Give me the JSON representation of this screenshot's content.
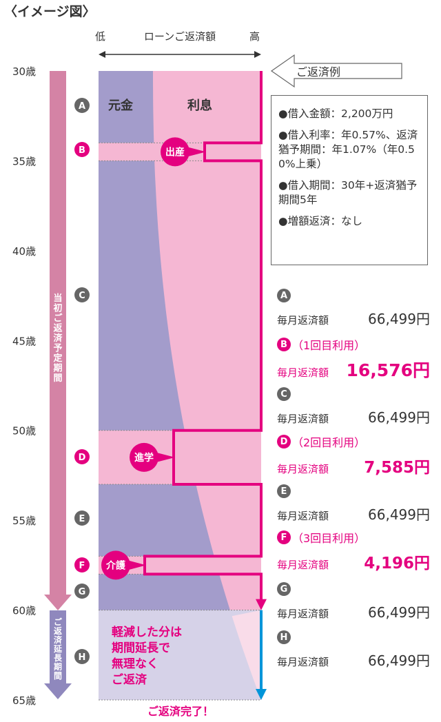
{
  "header": {
    "title": "〈イメージ図〉"
  },
  "legend": {
    "low": "低",
    "axis_label": "ローンご返済額",
    "high": "高"
  },
  "example_label": "ご返済例",
  "conditions": [
    "●借入金額：2,200万円",
    "●借入利率：年0.57%、返済猶予期間：年1.07%（年0.50%上乗）",
    "●借入期間：30年+返済猶予期間5年",
    "●増額返済：なし"
  ],
  "chart_data": {
    "type": "area",
    "x_axis": {
      "label": "ローンご返済額",
      "range_words": [
        "低",
        "高"
      ]
    },
    "y_axis": {
      "ticks": [
        "30歳",
        "35歳",
        "40歳",
        "45歳",
        "50歳",
        "55歳",
        "60歳",
        "65歳"
      ],
      "range": [
        30,
        65
      ]
    },
    "series": [
      {
        "name": "元金"
      },
      {
        "name": "利息"
      }
    ],
    "periods": [
      {
        "name": "当初ご返済予定期間",
        "from_age": 30,
        "to_age": 60
      },
      {
        "name": "ご返済延長期間",
        "from_age": 60,
        "to_age": 65
      }
    ],
    "segments": [
      {
        "id": "A",
        "from_age": 30,
        "to_age": 34
      },
      {
        "id": "B",
        "from_age": 34,
        "to_age": 35,
        "event": "出産"
      },
      {
        "id": "C",
        "from_age": 35,
        "to_age": 50
      },
      {
        "id": "D",
        "from_age": 50,
        "to_age": 53,
        "event": "進学"
      },
      {
        "id": "E",
        "from_age": 53,
        "to_age": 57
      },
      {
        "id": "F",
        "from_age": 57,
        "to_age": 58,
        "event": "介護"
      },
      {
        "id": "G",
        "from_age": 58,
        "to_age": 60
      },
      {
        "id": "H",
        "from_age": 60,
        "to_age": 65
      }
    ],
    "payments": [
      {
        "id": "A",
        "label": "毎月返済額",
        "amount": "66,499円"
      },
      {
        "id": "B",
        "usage": "（1回目利用）",
        "label": "毎月返済額",
        "amount": "16,576円"
      },
      {
        "id": "C",
        "label": "毎月返済額",
        "amount": "66,499円"
      },
      {
        "id": "D",
        "usage": "（2回目利用）",
        "label": "毎月返済額",
        "amount": "7,585円"
      },
      {
        "id": "E",
        "label": "毎月返済額",
        "amount": "66,499円"
      },
      {
        "id": "F",
        "usage": "（3回目利用）",
        "label": "毎月返済額",
        "amount": "4,196円"
      },
      {
        "id": "G",
        "label": "毎月返済額",
        "amount": "66,499円"
      },
      {
        "id": "H",
        "label": "毎月返済額",
        "amount": "66,499円"
      }
    ],
    "extension_note": "軽減した分は\n期間延長で\n無理なく\nご返済",
    "completion_label": "ご返済完了！"
  },
  "colors": {
    "principal": "#a39ccb",
    "interest": "#f5b7d3",
    "highlight": "#e4007f",
    "period_arrow": "#d483a5",
    "extension_arrow": "#8f88bd",
    "extension_bg": "#d6d2e8",
    "completion_arrow": "#0095d9",
    "badge_gray": "#666666"
  }
}
